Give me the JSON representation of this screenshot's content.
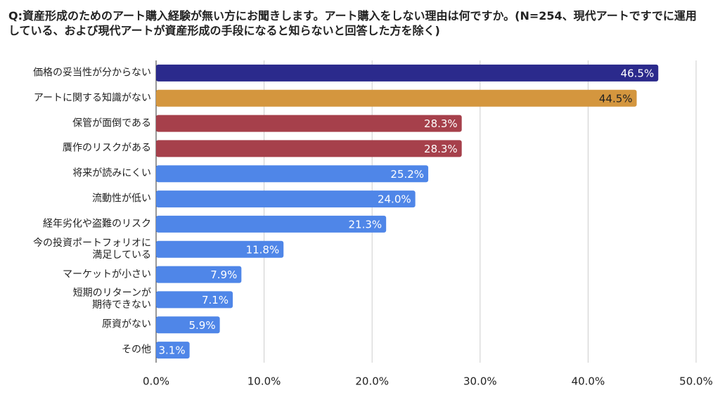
{
  "chart_data": {
    "type": "bar",
    "orientation": "horizontal",
    "title": "Q:資産形成のためのアート購入経験が無い方にお聞きします。アート購入をしない理由は何ですか。(N=254、現代アートですでに運用している、および現代アートが資産形成の手段になると知らないと回答した方を除く)",
    "categories": [
      "価格の妥当性が分からない",
      "アートに関する知識がない",
      "保管が面倒である",
      "贋作のリスクがある",
      "将来が読みにくい",
      "流動性が低い",
      "経年劣化や盗難のリスク",
      "今の投資ポートフォリオに\n満足している",
      "マーケットが小さい",
      "短期のリターンが\n期待できない",
      "原資がない",
      "その他"
    ],
    "values": [
      46.5,
      44.5,
      28.3,
      28.3,
      25.2,
      24.0,
      21.3,
      11.8,
      7.9,
      7.1,
      5.9,
      3.1
    ],
    "value_labels": [
      "46.5%",
      "44.5%",
      "28.3%",
      "28.3%",
      "25.2%",
      "24.0%",
      "21.3%",
      "11.8%",
      "7.9%",
      "7.1%",
      "5.9%",
      "3.1%"
    ],
    "colors": [
      "#2b2a8c",
      "#d4963e",
      "#a6404b",
      "#a6404b",
      "#4f86e8",
      "#4f86e8",
      "#4f86e8",
      "#4f86e8",
      "#4f86e8",
      "#4f86e8",
      "#4f86e8",
      "#4f86e8"
    ],
    "label_colors": [
      "#ffffff",
      "#222222",
      "#ffffff",
      "#ffffff",
      "#ffffff",
      "#ffffff",
      "#ffffff",
      "#ffffff",
      "#ffffff",
      "#ffffff",
      "#ffffff",
      "#ffffff"
    ],
    "xlim": [
      0,
      50
    ],
    "xticks": [
      {
        "value": 0,
        "label": "0.0%"
      },
      {
        "value": 10,
        "label": "10.0%"
      },
      {
        "value": 20,
        "label": "20.0%"
      },
      {
        "value": 30,
        "label": "30.0%"
      },
      {
        "value": 40,
        "label": "40.0%"
      },
      {
        "value": 50,
        "label": "50.0%"
      }
    ],
    "grid": true
  }
}
